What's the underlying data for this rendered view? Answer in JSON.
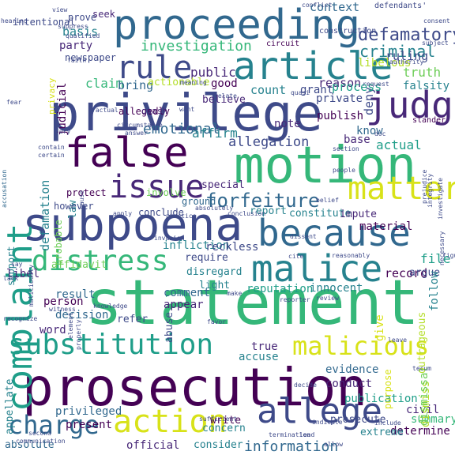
{
  "palette": {
    "deep_purple": "#440154",
    "purple": "#482878",
    "indigo": "#3e4a89",
    "blue": "#31688e",
    "teal": "#26828e",
    "sea": "#1f9e89",
    "green": "#35b779",
    "lime": "#6ece58",
    "yellow_green": "#b5de2b",
    "yellow": "#d8e219"
  },
  "words": [
    {
      "text": "statement",
      "color": "#35b779"
    },
    {
      "text": "prosecution",
      "color": "#440154"
    },
    {
      "text": "privilege",
      "color": "#3e4a89"
    },
    {
      "text": "motion",
      "color": "#35b779"
    },
    {
      "text": "subpoena",
      "color": "#3e4a89"
    },
    {
      "text": "proceeding",
      "color": "#31688e"
    },
    {
      "text": "complaint",
      "color": "#1f9e89"
    },
    {
      "text": "false",
      "color": "#440154"
    },
    {
      "text": "because",
      "color": "#31688e"
    },
    {
      "text": "article",
      "color": "#26828e"
    },
    {
      "text": "malice",
      "color": "#26828e"
    },
    {
      "text": "judge",
      "color": "#482878"
    },
    {
      "text": "issue",
      "color": "#482878"
    },
    {
      "text": "matter",
      "color": "#d8e219"
    },
    {
      "text": "allege",
      "color": "#3e4a89"
    },
    {
      "text": "substitution",
      "color": "#1f9e89"
    },
    {
      "text": "action",
      "color": "#d8e219"
    },
    {
      "text": "distress",
      "color": "#35b779"
    },
    {
      "text": "charge",
      "color": "#31688e"
    },
    {
      "text": "malicious",
      "color": "#d8e219"
    },
    {
      "text": "rule",
      "color": "#3e4a89"
    },
    {
      "text": "forfeiture",
      "color": "#31688e"
    },
    {
      "text": "defamatory",
      "color": "#3e4a89"
    },
    {
      "text": "criminal",
      "color": "#26828e"
    },
    {
      "text": "investigation",
      "color": "#35b779"
    },
    {
      "text": "emotional",
      "color": "#31688e"
    },
    {
      "text": "information",
      "color": "#31688e"
    },
    {
      "text": "allegation",
      "color": "#3e4a89"
    },
    {
      "text": "context",
      "color": "#31688e"
    },
    {
      "text": "defamation",
      "color": "#26828e"
    },
    {
      "text": "truth",
      "color": "#6ece58"
    },
    {
      "text": "ruling",
      "color": "#3e4a89"
    },
    {
      "text": "libelous",
      "color": "#b5de2b"
    },
    {
      "text": "falsity",
      "color": "#26828e"
    },
    {
      "text": "deny",
      "color": "#3e4a89"
    },
    {
      "text": "reason",
      "color": "#482878"
    },
    {
      "text": "process",
      "color": "#1f9e89"
    },
    {
      "text": "private",
      "color": "#3e4a89"
    },
    {
      "text": "publish",
      "color": "#440154"
    },
    {
      "text": "actual",
      "color": "#1f9e89"
    },
    {
      "text": "base",
      "color": "#482878"
    },
    {
      "text": "know",
      "color": "#31688e"
    },
    {
      "text": "affirm",
      "color": "#26828e"
    },
    {
      "text": "count",
      "color": "#26828e"
    },
    {
      "text": "note",
      "color": "#482878"
    },
    {
      "text": "grant",
      "color": "#3e4a89"
    },
    {
      "text": "good",
      "color": "#440154"
    },
    {
      "text": "public",
      "color": "#482878"
    },
    {
      "text": "claim",
      "color": "#35b779"
    },
    {
      "text": "bring",
      "color": "#31688e"
    },
    {
      "text": "basis",
      "color": "#26828e"
    },
    {
      "text": "party",
      "color": "#482878"
    },
    {
      "text": "judicial",
      "color": "#440154"
    },
    {
      "text": "newspaper",
      "color": "#3e4a89"
    },
    {
      "text": "prove",
      "color": "#3e4a89"
    },
    {
      "text": "seek",
      "color": "#482878"
    },
    {
      "text": "intentional",
      "color": "#3e4a89"
    },
    {
      "text": "allegedly",
      "color": "#440154"
    },
    {
      "text": "quash",
      "color": "#482878"
    },
    {
      "text": "believe",
      "color": "#482878"
    },
    {
      "text": "actionable",
      "color": "#b5de2b"
    },
    {
      "text": "privacy",
      "color": "#d8e219"
    },
    {
      "text": "law",
      "color": "#26828e"
    },
    {
      "text": "probable",
      "color": "#6ece58"
    },
    {
      "text": "protect",
      "color": "#440154"
    },
    {
      "text": "however",
      "color": "#3e4a89"
    },
    {
      "text": "involve",
      "color": "#6ece58"
    },
    {
      "text": "conclude",
      "color": "#3e4a89"
    },
    {
      "text": "ground",
      "color": "#31688e"
    },
    {
      "text": "special",
      "color": "#482878"
    },
    {
      "text": "constitute",
      "color": "#26828e"
    },
    {
      "text": "report",
      "color": "#26828e"
    },
    {
      "text": "impute",
      "color": "#482878"
    },
    {
      "text": "material",
      "color": "#440154"
    },
    {
      "text": "file",
      "color": "#1f9e89"
    },
    {
      "text": "record",
      "color": "#440154"
    },
    {
      "text": "argue",
      "color": "#3e4a89"
    },
    {
      "text": "follow",
      "color": "#26828e"
    },
    {
      "text": "innocent",
      "color": "#26828e"
    },
    {
      "text": "reputation",
      "color": "#1f9e89"
    },
    {
      "text": "affidavit",
      "color": "#6ece58"
    },
    {
      "text": "infliction",
      "color": "#26828e"
    },
    {
      "text": "reckless",
      "color": "#3e4a89"
    },
    {
      "text": "require",
      "color": "#3e4a89"
    },
    {
      "text": "disregard",
      "color": "#26828e"
    },
    {
      "text": "light",
      "color": "#26828e"
    },
    {
      "text": "appear",
      "color": "#482878"
    },
    {
      "text": "comment",
      "color": "#31688e"
    },
    {
      "text": "support",
      "color": "#26828e"
    },
    {
      "text": "libel",
      "color": "#482878"
    },
    {
      "text": "result",
      "color": "#31688e"
    },
    {
      "text": "person",
      "color": "#440154"
    },
    {
      "text": "decision",
      "color": "#31688e"
    },
    {
      "text": "word",
      "color": "#482878"
    },
    {
      "text": "abuse",
      "color": "#3e4a89"
    },
    {
      "text": "refer",
      "color": "#3e4a89"
    },
    {
      "text": "true",
      "color": "#482878"
    },
    {
      "text": "accuse",
      "color": "#26828e"
    },
    {
      "text": "evidence",
      "color": "#31688e"
    },
    {
      "text": "conduct",
      "color": "#482878"
    },
    {
      "text": "publication",
      "color": "#1f9e89"
    },
    {
      "text": "prosecute",
      "color": "#3e4a89"
    },
    {
      "text": "determine",
      "color": "#440154"
    },
    {
      "text": "civil",
      "color": "#482878"
    },
    {
      "text": "summary",
      "color": "#35b779"
    },
    {
      "text": "dismiss",
      "color": "#b5de2b"
    },
    {
      "text": "dismissal",
      "color": "#6ece58"
    },
    {
      "text": "privileged",
      "color": "#31688e"
    },
    {
      "text": "present",
      "color": "#440154"
    },
    {
      "text": "write",
      "color": "#440154"
    },
    {
      "text": "concern",
      "color": "#26828e"
    },
    {
      "text": "consider",
      "color": "#26828e"
    },
    {
      "text": "official",
      "color": "#482878"
    },
    {
      "text": "absolute",
      "color": "#31688e"
    },
    {
      "text": "appellate",
      "color": "#26828e"
    },
    {
      "text": "extreme",
      "color": "#26828e"
    },
    {
      "text": "give",
      "color": "#d8e219"
    },
    {
      "text": "purpose",
      "color": "#d8e219"
    },
    {
      "text": "outrageous",
      "color": "#b5de2b"
    },
    {
      "text": "construction",
      "color": "#3e4a89"
    },
    {
      "text": "circuit",
      "color": "#440154"
    },
    {
      "text": "defendants'",
      "color": "#3e4a89"
    },
    {
      "text": "hearing",
      "color": "#3e4a89"
    },
    {
      "text": "view",
      "color": "#3e4a89"
    },
    {
      "text": "qualified",
      "color": "#3e4a89"
    },
    {
      "text": "faith",
      "color": "#3e4a89"
    },
    {
      "text": "relate",
      "color": "#3e4a89"
    },
    {
      "text": "slander",
      "color": "#440154"
    },
    {
      "text": "jury",
      "color": "#3e4a89"
    },
    {
      "text": "section",
      "color": "#3e4a89"
    },
    {
      "text": "accusation",
      "color": "#31688e"
    },
    {
      "text": "contain",
      "color": "#3e4a89"
    },
    {
      "text": "certain",
      "color": "#3e4a89"
    },
    {
      "text": "answer",
      "color": "#3e4a89"
    },
    {
      "text": "circumstance",
      "color": "#3e4a89"
    },
    {
      "text": "factual",
      "color": "#3e4a89"
    },
    {
      "text": "meaning",
      "color": "#3e4a89"
    },
    {
      "text": "want",
      "color": "#3e4a89"
    },
    {
      "text": "people",
      "color": "#3e4a89"
    },
    {
      "text": "integrity",
      "color": "#3e4a89"
    },
    {
      "text": "investigate",
      "color": "#3e4a89"
    },
    {
      "text": "reasonably",
      "color": "#3e4a89"
    },
    {
      "text": "recognize",
      "color": "#3e4a89"
    },
    {
      "text": "knowledge",
      "color": "#3e4a89"
    },
    {
      "text": "witness",
      "color": "#3e4a89"
    },
    {
      "text": "review",
      "color": "#3e4a89"
    },
    {
      "text": "reporter",
      "color": "#3e4a89"
    },
    {
      "text": "decide",
      "color": "#3e4a89"
    },
    {
      "text": "tecum",
      "color": "#3e4a89"
    },
    {
      "text": "communication",
      "color": "#3e4a89"
    },
    {
      "text": "second",
      "color": "#3e4a89"
    },
    {
      "text": "include",
      "color": "#3e4a89"
    },
    {
      "text": "sufficient",
      "color": "#3e4a89"
    },
    {
      "text": "termination",
      "color": "#3e4a89"
    },
    {
      "text": "lead",
      "color": "#3e4a89"
    },
    {
      "text": "allow",
      "color": "#3e4a89"
    },
    {
      "text": "indicate",
      "color": "#3e4a89"
    },
    {
      "text": "leave",
      "color": "#3e4a89"
    },
    {
      "text": "subject",
      "color": "#3e4a89"
    },
    {
      "text": "request",
      "color": "#3e4a89"
    },
    {
      "text": "authority",
      "color": "#3e4a89"
    },
    {
      "text": "suppress",
      "color": "#3e4a89"
    },
    {
      "text": "fear",
      "color": "#3e4a89"
    },
    {
      "text": "say",
      "color": "#3e4a89"
    },
    {
      "text": "lack",
      "color": "#3e4a89"
    },
    {
      "text": "dissent",
      "color": "#3e4a89"
    },
    {
      "text": "favor",
      "color": "#3e4a89"
    },
    {
      "text": "properly",
      "color": "#3e4a89"
    },
    {
      "text": "element",
      "color": "#3e4a89"
    },
    {
      "text": "maliciously",
      "color": "#3e4a89"
    },
    {
      "text": "conclusion",
      "color": "#3e4a89"
    },
    {
      "text": "apply",
      "color": "#3e4a89"
    },
    {
      "text": "practice",
      "color": "#3e4a89"
    },
    {
      "text": "absolutely",
      "color": "#3e4a89"
    },
    {
      "text": "belief",
      "color": "#3e4a89"
    },
    {
      "text": "cause",
      "color": "#3e4a89"
    },
    {
      "text": "make",
      "color": "#3e4a89"
    },
    {
      "text": "cite",
      "color": "#3e4a89"
    },
    {
      "text": "figure",
      "color": "#3e4a89"
    },
    {
      "text": "necessary",
      "color": "#3e4a89"
    },
    {
      "text": "prejudice",
      "color": "#3e4a89"
    },
    {
      "text": "invasion",
      "color": "#3e4a89"
    },
    {
      "text": "conflict",
      "color": "#3e4a89"
    },
    {
      "text": "quasi",
      "color": "#3e4a89"
    },
    {
      "text": "doc",
      "color": "#3e4a89"
    },
    {
      "text": "consent",
      "color": "#3e4a89"
    }
  ]
}
